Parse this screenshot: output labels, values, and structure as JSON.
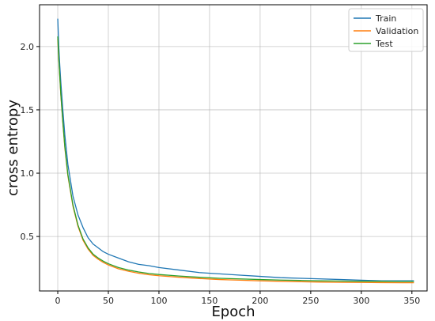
{
  "chart_data": {
    "type": "line",
    "xlabel": "Epoch",
    "ylabel": "cross entropy",
    "xlim": [
      -18,
      365
    ],
    "ylim": [
      0.07,
      2.33
    ],
    "x_ticks": [
      0,
      50,
      100,
      150,
      200,
      250,
      300,
      350
    ],
    "y_ticks": [
      0.5,
      1.0,
      1.5,
      2.0
    ],
    "y_tick_labels": [
      "0.5",
      "1.0",
      "1.5",
      "2.0"
    ],
    "grid": true,
    "legend_position": "top-right",
    "series": [
      {
        "name": "Train",
        "color": "#1f77b4",
        "x": [
          0,
          1,
          2,
          3,
          5,
          7,
          10,
          15,
          20,
          25,
          30,
          35,
          40,
          45,
          50,
          60,
          70,
          80,
          90,
          100,
          120,
          140,
          160,
          180,
          200,
          220,
          240,
          260,
          280,
          300,
          320,
          340,
          352
        ],
        "y": [
          2.22,
          2.0,
          1.85,
          1.72,
          1.5,
          1.3,
          1.07,
          0.82,
          0.67,
          0.57,
          0.49,
          0.44,
          0.41,
          0.38,
          0.36,
          0.33,
          0.3,
          0.28,
          0.27,
          0.255,
          0.235,
          0.215,
          0.205,
          0.195,
          0.185,
          0.175,
          0.17,
          0.165,
          0.16,
          0.155,
          0.15,
          0.15,
          0.15
        ]
      },
      {
        "name": "Validation",
        "color": "#ff7f0e",
        "x": [
          0,
          1,
          2,
          3,
          5,
          7,
          10,
          15,
          20,
          25,
          30,
          35,
          40,
          45,
          50,
          60,
          70,
          80,
          90,
          100,
          120,
          140,
          160,
          180,
          200,
          220,
          240,
          260,
          280,
          300,
          320,
          340,
          352
        ],
        "y": [
          2.06,
          1.9,
          1.76,
          1.62,
          1.4,
          1.2,
          0.98,
          0.74,
          0.58,
          0.47,
          0.4,
          0.35,
          0.32,
          0.295,
          0.275,
          0.245,
          0.225,
          0.21,
          0.198,
          0.19,
          0.178,
          0.168,
          0.16,
          0.155,
          0.15,
          0.146,
          0.143,
          0.14,
          0.138,
          0.137,
          0.136,
          0.135,
          0.135
        ]
      },
      {
        "name": "Test",
        "color": "#2ca02c",
        "x": [
          0,
          1,
          2,
          3,
          5,
          7,
          10,
          15,
          20,
          25,
          30,
          35,
          40,
          45,
          50,
          60,
          70,
          80,
          90,
          100,
          120,
          140,
          160,
          180,
          200,
          220,
          240,
          260,
          280,
          300,
          320,
          340,
          352
        ],
        "y": [
          2.08,
          1.91,
          1.77,
          1.63,
          1.41,
          1.21,
          0.99,
          0.75,
          0.59,
          0.48,
          0.41,
          0.36,
          0.33,
          0.305,
          0.285,
          0.255,
          0.235,
          0.22,
          0.208,
          0.2,
          0.188,
          0.178,
          0.17,
          0.165,
          0.16,
          0.156,
          0.153,
          0.15,
          0.148,
          0.147,
          0.146,
          0.145,
          0.145
        ]
      }
    ]
  }
}
